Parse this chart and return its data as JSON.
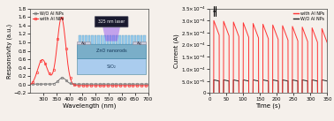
{
  "left_xlabel": "Wavelength (nm)",
  "left_ylabel": "Responsivity (a.u.)",
  "right_ylabel": "Current (A)",
  "right_xlabel": "Time (s)",
  "left_xlim": [
    250,
    700
  ],
  "left_ylim": [
    -0.2,
    1.8
  ],
  "left_yticks": [
    -0.2,
    0.0,
    0.2,
    0.4,
    0.6,
    0.8,
    1.0,
    1.2,
    1.4,
    1.6,
    1.8
  ],
  "left_xticks": [
    300,
    350,
    400,
    450,
    500,
    550,
    600,
    650,
    700
  ],
  "right_xlim": [
    0,
    350
  ],
  "right_ylim": [
    0,
    0.00035
  ],
  "right_yticks": [
    0,
    5e-05,
    0.0001,
    0.00015,
    0.0002,
    0.00025,
    0.0003,
    0.00035
  ],
  "right_xticks": [
    0,
    50,
    100,
    150,
    200,
    250,
    300,
    350
  ],
  "legend_left": [
    "W/O Al NPs",
    "with Al NPs"
  ],
  "legend_right": [
    "with Al NPs",
    "W/O Al NPs"
  ],
  "color_red": "#FF3333",
  "color_dark": "#222222",
  "color_gray": "#777777",
  "bg_color": "#f5f0eb",
  "inset_sio2_color": "#aaccee",
  "inset_zno_color": "#7aaec8",
  "inset_rod_color": "#99ccee",
  "inset_ag_color": "#bbbbcc",
  "inset_laser_color": "#1a1a2e",
  "inset_beam_color": "#8844ee"
}
